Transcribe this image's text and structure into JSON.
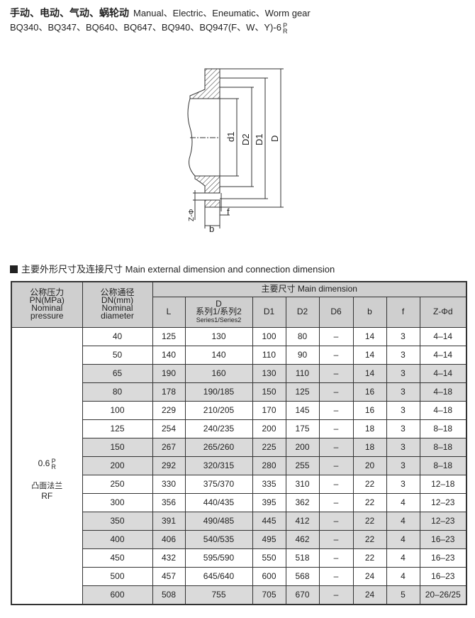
{
  "header": {
    "title_cn": "手动、电动、气动、蜗轮动",
    "title_en": "Manual、Electric、Eneumatic、Worm gear",
    "models": "BQ340、BQ347、BQ640、BQ647、BQ940、BQ947(F、W、Y)-6",
    "models_sup": "P",
    "models_sub": "R"
  },
  "diagram": {
    "labels": {
      "d1": "d1",
      "D2": "D2",
      "D1": "D1",
      "D": "D",
      "zphi": "Z-Φ",
      "b": "b",
      "f": "f"
    }
  },
  "section": {
    "title_cn": "主要外形尺寸及连接尺寸",
    "title_en": "Main external dimension and connection dimension"
  },
  "table": {
    "col_pn": [
      "公称压力",
      "PN(MPa)",
      "Nominal",
      "pressure"
    ],
    "col_dn": [
      "公称通径",
      "DN(mm)",
      "Nominal",
      "diameter"
    ],
    "main_dimension": "主要尺寸 Main dimension",
    "cols": {
      "L": "L",
      "D": "D",
      "D_cn": "系列1/系列2",
      "D_en": "Series1/Series2",
      "D1": "D1",
      "D2": "D2",
      "D6": "D6",
      "b": "b",
      "f": "f",
      "z": "Z-Φd"
    },
    "pn_value": "0.6",
    "pn_sup": "P",
    "pn_sub": "R",
    "face_cn": "凸面法兰",
    "face_en": "RF",
    "row_shading": [
      "white",
      "white",
      "gray",
      "gray",
      "white",
      "white",
      "gray",
      "gray",
      "white",
      "white",
      "gray",
      "gray",
      "white",
      "white",
      "gray"
    ],
    "rows": [
      [
        "40",
        "125",
        "130",
        "100",
        "80",
        "–",
        "14",
        "3",
        "4–14"
      ],
      [
        "50",
        "140",
        "140",
        "110",
        "90",
        "–",
        "14",
        "3",
        "4–14"
      ],
      [
        "65",
        "190",
        "160",
        "130",
        "110",
        "–",
        "14",
        "3",
        "4–14"
      ],
      [
        "80",
        "178",
        "190/185",
        "150",
        "125",
        "–",
        "16",
        "3",
        "4–18"
      ],
      [
        "100",
        "229",
        "210/205",
        "170",
        "145",
        "–",
        "16",
        "3",
        "4–18"
      ],
      [
        "125",
        "254",
        "240/235",
        "200",
        "175",
        "–",
        "18",
        "3",
        "8–18"
      ],
      [
        "150",
        "267",
        "265/260",
        "225",
        "200",
        "–",
        "18",
        "3",
        "8–18"
      ],
      [
        "200",
        "292",
        "320/315",
        "280",
        "255",
        "–",
        "20",
        "3",
        "8–18"
      ],
      [
        "250",
        "330",
        "375/370",
        "335",
        "310",
        "–",
        "22",
        "3",
        "12–18"
      ],
      [
        "300",
        "356",
        "440/435",
        "395",
        "362",
        "–",
        "22",
        "4",
        "12–23"
      ],
      [
        "350",
        "391",
        "490/485",
        "445",
        "412",
        "–",
        "22",
        "4",
        "12–23"
      ],
      [
        "400",
        "406",
        "540/535",
        "495",
        "462",
        "–",
        "22",
        "4",
        "16–23"
      ],
      [
        "450",
        "432",
        "595/590",
        "550",
        "518",
        "–",
        "22",
        "4",
        "16–23"
      ],
      [
        "500",
        "457",
        "645/640",
        "600",
        "568",
        "–",
        "24",
        "4",
        "16–23"
      ],
      [
        "600",
        "508",
        "755",
        "705",
        "670",
        "–",
        "24",
        "5",
        "20–26/25"
      ]
    ]
  }
}
